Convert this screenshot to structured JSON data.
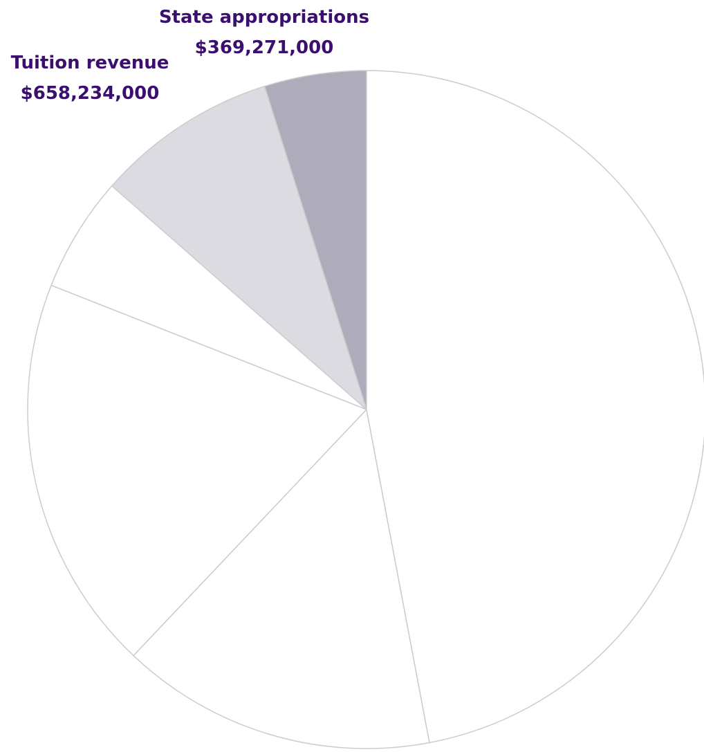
{
  "chart_data": {
    "type": "pie",
    "slices": [
      {
        "label": "State appropriations",
        "display_value": "$369,271,000",
        "value": 369271000,
        "color": "#aeabbb",
        "labeled": true
      },
      {
        "label": "Tuition revenue",
        "display_value": "$658,234,000",
        "value": 658234000,
        "color": "#dcdbe2",
        "labeled": true
      },
      {
        "label": "",
        "display_value": "",
        "value": 417000000,
        "color": "#ffffff",
        "labeled": false
      },
      {
        "label": "",
        "display_value": "",
        "value": 1435000000,
        "color": "#ffffff",
        "labeled": false
      },
      {
        "label": "",
        "display_value": "",
        "value": 1142000000,
        "color": "#ffffff",
        "labeled": false
      },
      {
        "label": "",
        "display_value": "",
        "value": 3570000000,
        "color": "#ffffff",
        "labeled": false
      }
    ],
    "start_angle_deg": 0,
    "direction": "counterclockwise",
    "legend": "none",
    "title": "",
    "colors": {
      "label_text": "#3b0f6e",
      "slice_border": "#cccccc"
    }
  }
}
